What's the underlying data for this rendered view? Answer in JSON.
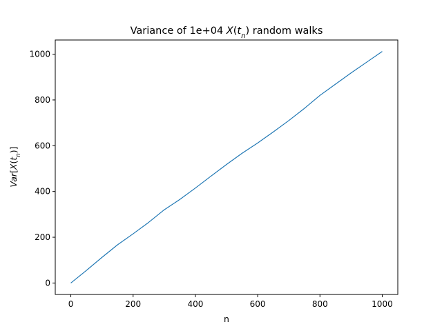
{
  "chart_data": {
    "type": "line",
    "title_parts": [
      {
        "text": "Variance of 1e+04 ",
        "italic": false
      },
      {
        "text": "X",
        "italic": true
      },
      {
        "text": "(",
        "italic": false
      },
      {
        "text": "t",
        "italic": true
      },
      {
        "text": "n",
        "italic": true,
        "sub": true
      },
      {
        "text": ")",
        "italic": false
      },
      {
        "text": " random walks",
        "italic": false
      }
    ],
    "xlabel": "n",
    "ylabel_parts": [
      {
        "text": "Var",
        "italic": true
      },
      {
        "text": "[",
        "italic": false
      },
      {
        "text": "X",
        "italic": true
      },
      {
        "text": "(",
        "italic": false
      },
      {
        "text": "t",
        "italic": true
      },
      {
        "text": "n",
        "italic": true,
        "sub": true
      },
      {
        "text": ")]",
        "italic": false
      }
    ],
    "xlim": [
      -50,
      1050
    ],
    "ylim": [
      -50,
      1062
    ],
    "x_ticks": [
      0,
      200,
      400,
      600,
      800,
      1000
    ],
    "x_tick_labels": [
      "0",
      "200",
      "400",
      "600",
      "800",
      "1000"
    ],
    "y_ticks": [
      0,
      200,
      400,
      600,
      800,
      1000
    ],
    "y_tick_labels": [
      "0",
      "200",
      "400",
      "600",
      "800",
      "1000"
    ],
    "grid": false,
    "legend": "none",
    "series": [
      {
        "color": "#1f77b4",
        "x": [
          0,
          50,
          100,
          150,
          200,
          250,
          300,
          350,
          400,
          450,
          500,
          550,
          600,
          650,
          700,
          750,
          800,
          850,
          900,
          950,
          1000
        ],
        "y": [
          0,
          55,
          112,
          167,
          215,
          265,
          320,
          365,
          415,
          467,
          518,
          567,
          612,
          660,
          710,
          763,
          820,
          869,
          918,
          965,
          1012
        ]
      }
    ]
  }
}
